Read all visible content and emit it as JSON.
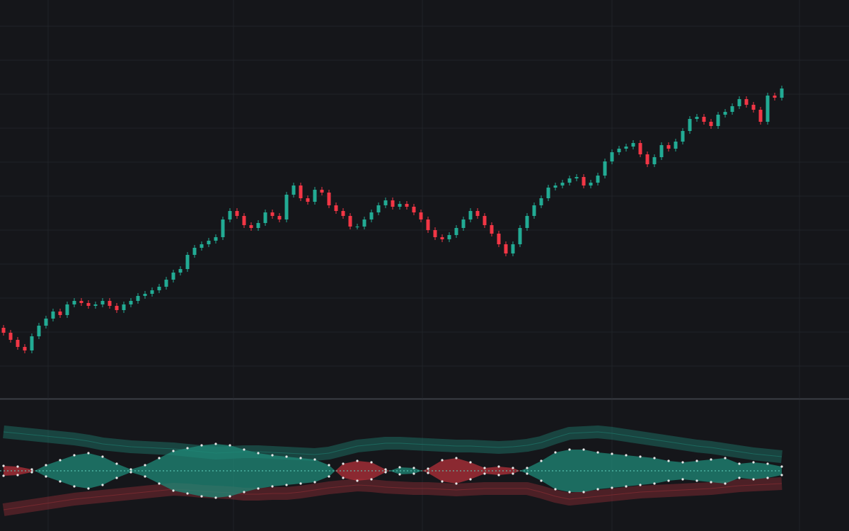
{
  "chart_data": [
    {
      "type": "candlestick",
      "open": [
        100,
        93,
        83,
        73,
        68,
        88,
        103,
        113,
        123,
        118,
        133,
        138,
        135,
        131,
        133,
        138,
        131,
        125,
        133,
        138,
        145,
        148,
        153,
        158,
        168,
        178,
        183,
        203,
        213,
        218,
        223,
        228,
        253,
        265,
        258,
        245,
        241,
        248,
        263,
        258,
        253,
        288,
        301,
        283,
        278,
        295,
        291,
        273,
        265,
        258,
        243,
        243,
        253,
        263,
        273,
        280,
        271,
        275,
        271,
        263,
        253,
        238,
        228,
        225,
        231,
        241,
        253,
        265,
        258,
        245,
        233,
        218,
        205,
        218,
        241,
        258,
        273,
        283,
        298,
        301,
        305,
        311,
        313,
        301,
        305,
        315,
        335,
        348,
        353,
        356,
        361,
        345,
        331,
        341,
        358,
        353,
        363,
        378,
        395,
        398,
        391,
        385,
        401,
        405,
        413,
        423,
        415,
        408,
        391,
        428,
        425
      ],
      "high": [
        104,
        97,
        87,
        77,
        92,
        107,
        117,
        127,
        127,
        137,
        142,
        142,
        139,
        137,
        142,
        142,
        135,
        137,
        142,
        149,
        152,
        157,
        162,
        172,
        182,
        187,
        207,
        217,
        222,
        227,
        232,
        257,
        269,
        269,
        262,
        249,
        252,
        267,
        267,
        262,
        292,
        305,
        305,
        287,
        299,
        299,
        295,
        277,
        269,
        262,
        247,
        257,
        267,
        277,
        284,
        284,
        279,
        279,
        275,
        267,
        257,
        242,
        232,
        235,
        245,
        257,
        269,
        269,
        262,
        249,
        237,
        222,
        222,
        245,
        262,
        277,
        287,
        302,
        305,
        309,
        315,
        317,
        317,
        309,
        319,
        339,
        352,
        357,
        360,
        365,
        365,
        349,
        345,
        362,
        362,
        367,
        382,
        399,
        402,
        402,
        395,
        405,
        409,
        417,
        427,
        427,
        419,
        412,
        432,
        432,
        442
      ],
      "low": [
        89,
        79,
        69,
        64,
        64,
        84,
        99,
        109,
        114,
        114,
        129,
        131,
        127,
        127,
        129,
        127,
        121,
        121,
        129,
        134,
        141,
        144,
        149,
        154,
        164,
        174,
        179,
        199,
        209,
        214,
        219,
        224,
        249,
        254,
        241,
        237,
        237,
        244,
        254,
        249,
        249,
        284,
        279,
        274,
        274,
        287,
        269,
        261,
        254,
        239,
        239,
        239,
        249,
        259,
        269,
        267,
        267,
        267,
        259,
        249,
        234,
        224,
        221,
        221,
        227,
        237,
        249,
        254,
        241,
        229,
        214,
        201,
        201,
        214,
        237,
        254,
        269,
        279,
        294,
        297,
        301,
        307,
        297,
        297,
        301,
        311,
        331,
        344,
        349,
        352,
        341,
        327,
        327,
        337,
        349,
        349,
        359,
        374,
        391,
        387,
        381,
        381,
        397,
        401,
        409,
        411,
        404,
        387,
        387,
        421,
        421
      ],
      "close": [
        93,
        83,
        73,
        68,
        88,
        103,
        113,
        123,
        118,
        133,
        138,
        135,
        131,
        133,
        138,
        131,
        125,
        133,
        138,
        145,
        148,
        153,
        158,
        168,
        178,
        183,
        203,
        213,
        218,
        223,
        228,
        253,
        265,
        258,
        245,
        241,
        248,
        263,
        258,
        253,
        288,
        301,
        283,
        278,
        295,
        291,
        273,
        265,
        258,
        243,
        243,
        253,
        263,
        273,
        280,
        271,
        275,
        271,
        263,
        253,
        238,
        228,
        225,
        231,
        241,
        253,
        265,
        258,
        245,
        233,
        218,
        205,
        218,
        241,
        258,
        273,
        283,
        298,
        301,
        305,
        311,
        313,
        301,
        305,
        315,
        335,
        348,
        353,
        356,
        361,
        345,
        331,
        341,
        358,
        353,
        363,
        378,
        395,
        398,
        391,
        385,
        401,
        405,
        413,
        423,
        415,
        408,
        391,
        428,
        425,
        438
      ],
      "up_color": "#22ab94",
      "down_color": "#f23645",
      "xlim": [
        -0.5,
        119.5
      ],
      "xticks": [
        6.3,
        32.5,
        59.2,
        86,
        112.5
      ],
      "ylim": [
        0,
        563
      ],
      "yticks": [
        46,
        94,
        142,
        190,
        238,
        286,
        334,
        382,
        430,
        478,
        526
      ],
      "grid": true
    },
    {
      "type": "indicator",
      "x": [
        0,
        2,
        4,
        6,
        8,
        10,
        12,
        14,
        16,
        18,
        20,
        22,
        24,
        26,
        28,
        30,
        32,
        34,
        36,
        38,
        40,
        42,
        44,
        46,
        48,
        50,
        52,
        54,
        56,
        58,
        60,
        62,
        64,
        66,
        68,
        70,
        72,
        74,
        76,
        78,
        80,
        82,
        84,
        86,
        88,
        90,
        92,
        94,
        96,
        98,
        100,
        102,
        104,
        106,
        108,
        110
      ],
      "series": [
        {
          "color": "#1d6b60",
          "values": [
            55,
            53,
            51,
            49,
            47,
            45,
            42,
            38,
            36,
            34,
            33,
            32,
            31,
            29,
            27,
            25,
            26,
            27,
            27,
            26,
            25,
            24,
            23,
            25,
            30,
            35,
            37,
            39,
            39,
            38,
            37,
            36,
            35,
            35,
            34,
            33,
            34,
            36,
            40,
            47,
            53,
            54,
            55,
            53,
            50,
            47,
            44,
            41,
            38,
            35,
            33,
            30,
            27,
            24,
            22,
            20
          ]
        },
        {
          "color": "#7a2a31",
          "values": [
            -55,
            -52,
            -49,
            -46,
            -43,
            -40,
            -38,
            -36,
            -34,
            -32,
            -30,
            -28,
            -26,
            -27,
            -29,
            -30,
            -31,
            -33,
            -33,
            -32,
            -32,
            -30,
            -27,
            -24,
            -22,
            -20,
            -21,
            -23,
            -24,
            -25,
            -25,
            -26,
            -27,
            -26,
            -25,
            -25,
            -25,
            -25,
            -30,
            -36,
            -40,
            -38,
            -36,
            -34,
            -32,
            -30,
            -29,
            -28,
            -27,
            -26,
            -25,
            -23,
            -21,
            -20,
            -19,
            -18
          ]
        },
        {
          "color": "#1f8a78",
          "negative_color": "#b3303a",
          "values": [
            -7,
            -6,
            -2,
            8,
            15,
            22,
            25,
            20,
            10,
            2,
            8,
            18,
            28,
            32,
            36,
            38,
            36,
            30,
            25,
            22,
            20,
            18,
            16,
            8,
            -10,
            -14,
            -12,
            -2,
            5,
            4,
            -3,
            -15,
            -18,
            -12,
            -4,
            -6,
            -4,
            4,
            14,
            26,
            30,
            30,
            26,
            24,
            22,
            20,
            18,
            14,
            12,
            14,
            16,
            18,
            10,
            12,
            10,
            6
          ]
        }
      ],
      "xlim": [
        -0.5,
        119.5
      ],
      "xticks": [
        6.3,
        32.5,
        59.2,
        86,
        112.5
      ],
      "ylim": [
        -85,
        100
      ],
      "grid": true
    }
  ]
}
